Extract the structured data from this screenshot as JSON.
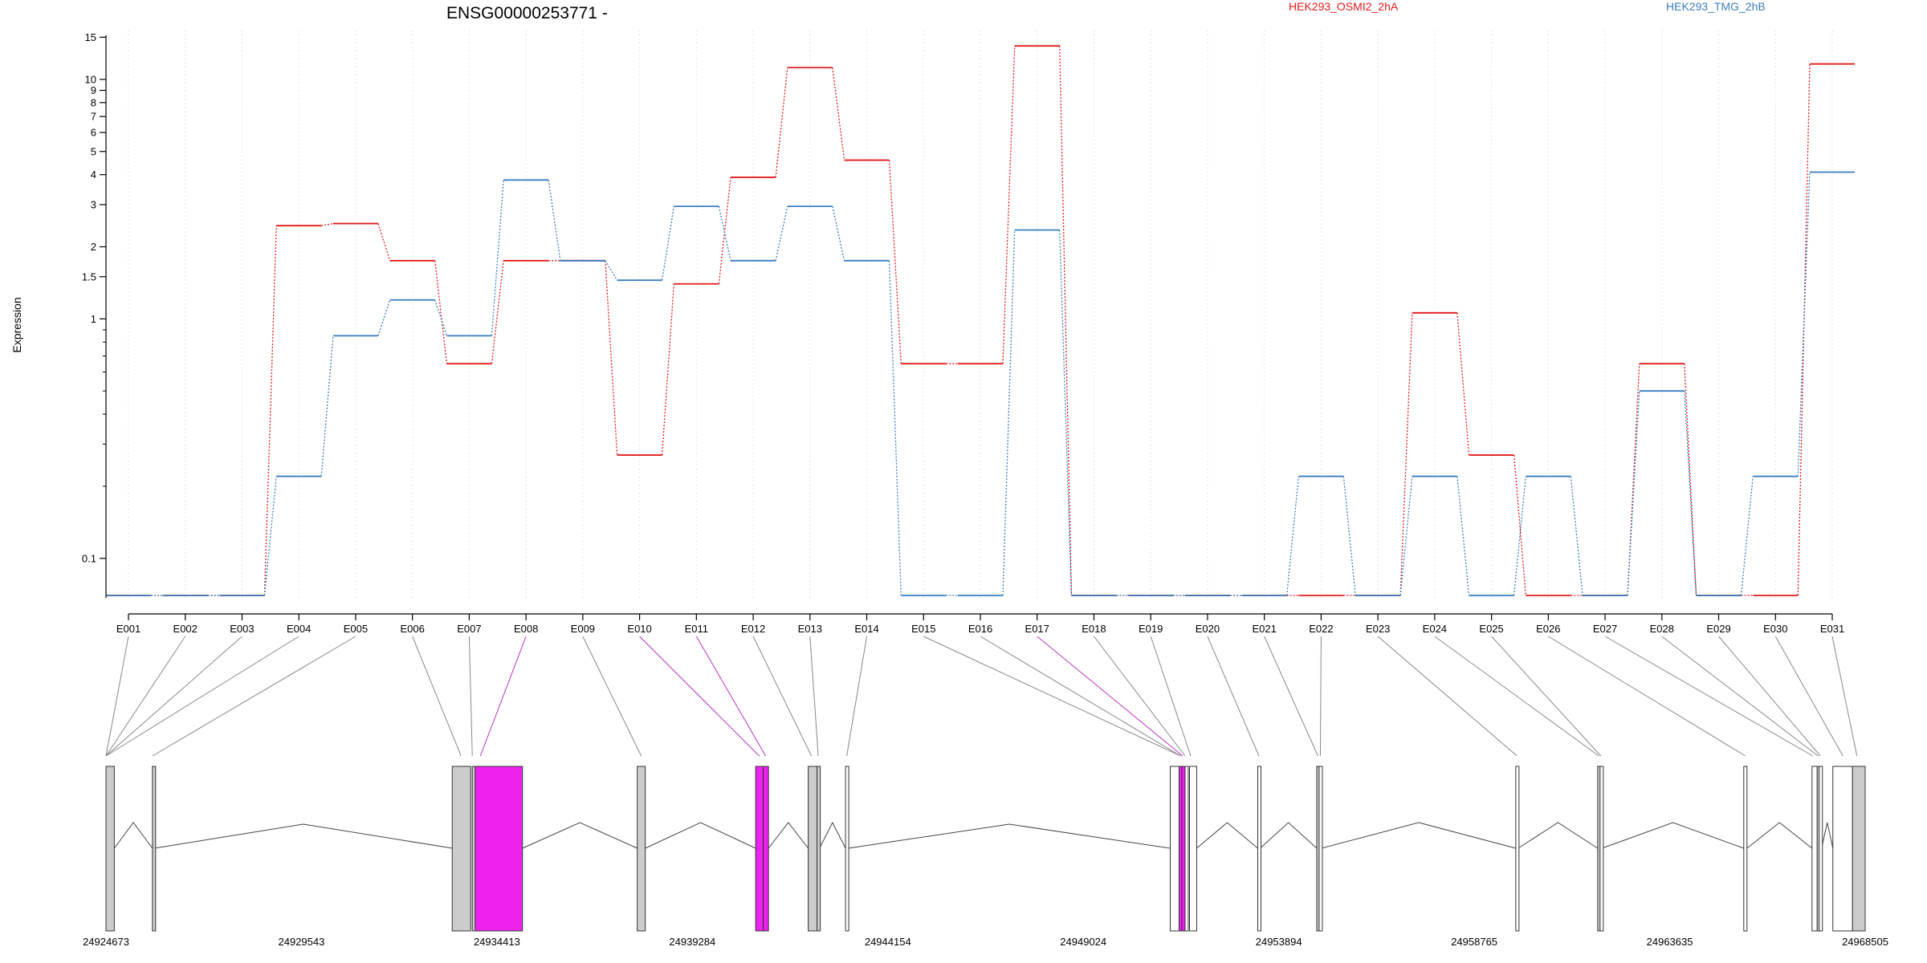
{
  "chart_data": {
    "type": "line",
    "title": "ENSG00000253771 -",
    "ylabel": "Expression",
    "y_scale": "log",
    "ylim": [
      0.07,
      16
    ],
    "y_ticks": [
      0.1,
      1,
      1.5,
      2,
      3,
      4,
      5,
      6,
      7,
      8,
      9,
      10,
      15
    ],
    "y_tick_labels": [
      "0.1",
      "1",
      "1.5",
      "2",
      "3",
      "4",
      "5",
      "6",
      "7",
      "8",
      "9",
      "10",
      "15"
    ],
    "legend_placement": "top",
    "grid": "vertical dotted lines at exon positions",
    "categories": [
      "E001",
      "E002",
      "E003",
      "E004",
      "E005",
      "E006",
      "E007",
      "E008",
      "E009",
      "E010",
      "E011",
      "E012",
      "E013",
      "E014",
      "E015",
      "E016",
      "E017",
      "E018",
      "E019",
      "E020",
      "E021",
      "E022",
      "E023",
      "E024",
      "E025",
      "E026",
      "E027",
      "E028",
      "E029",
      "E030",
      "E031"
    ],
    "series": [
      {
        "name": "HEK293_OSMI2_2hA",
        "color": "#e31a1c",
        "values": [
          0.07,
          0.07,
          0.07,
          2.45,
          2.5,
          1.75,
          0.65,
          1.75,
          1.75,
          0.27,
          1.4,
          3.9,
          11.2,
          4.6,
          0.65,
          0.65,
          13.8,
          0.07,
          0.07,
          0.07,
          0.07,
          0.07,
          0.07,
          1.06,
          0.27,
          0.07,
          0.07,
          0.65,
          0.07,
          0.07,
          11.6
        ]
      },
      {
        "name": "HEK293_TMG_2hB",
        "color": "#3a7ec0",
        "values": [
          0.07,
          0.07,
          0.07,
          0.22,
          0.85,
          1.2,
          0.85,
          3.8,
          1.75,
          1.45,
          2.95,
          1.75,
          2.95,
          1.75,
          0.07,
          0.07,
          2.35,
          0.07,
          0.07,
          0.07,
          0.07,
          0.22,
          0.07,
          0.22,
          0.07,
          0.22,
          0.07,
          0.5,
          0.07,
          0.22,
          4.1
        ]
      }
    ],
    "gene_model": {
      "coordinate_labels": [
        "24924673",
        "24929543",
        "24934413",
        "24939284",
        "24944154",
        "24949024",
        "24953894",
        "24958765",
        "24963635",
        "24968505"
      ],
      "coord_range": [
        24924673,
        24968505
      ],
      "exons": [
        {
          "id": "E001",
          "start": 24924673,
          "end": 24924880,
          "fill": "#cccccc"
        },
        {
          "id": "E002",
          "start": 24925830,
          "end": 24925880,
          "fill": "#cccccc"
        },
        {
          "id": "E006",
          "start": 24933300,
          "end": 24933760,
          "fill": "#cccccc"
        },
        {
          "id": "E007",
          "start": 24933800,
          "end": 24933860,
          "fill": "#cccccc"
        },
        {
          "id": "E008",
          "start": 24933870,
          "end": 24935050,
          "fill": "#ee22ee"
        },
        {
          "id": "E009",
          "start": 24937910,
          "end": 24938110,
          "fill": "#cccccc"
        },
        {
          "id": "E010",
          "start": 24940860,
          "end": 24941050,
          "fill": "#ee22ee"
        },
        {
          "id": "E011",
          "start": 24941050,
          "end": 24941180,
          "fill": "#ee22ee"
        },
        {
          "id": "E012",
          "start": 24942170,
          "end": 24942390,
          "fill": "#cccccc"
        },
        {
          "id": "E013",
          "start": 24942390,
          "end": 24942450,
          "fill": "#cccccc"
        },
        {
          "id": "E014",
          "start": 24943100,
          "end": 24943170,
          "fill": "#ffffff"
        },
        {
          "id": "E015",
          "start": 24951190,
          "end": 24951410,
          "fill": "#ffffff"
        },
        {
          "id": "E016",
          "start": 24951410,
          "end": 24951480,
          "fill": "#ee22ee"
        },
        {
          "id": "E017",
          "start": 24951480,
          "end": 24951560,
          "fill": "#ee22ee"
        },
        {
          "id": "E018",
          "start": 24951560,
          "end": 24951610,
          "fill": "#ffffff"
        },
        {
          "id": "E019",
          "start": 24951670,
          "end": 24951850,
          "fill": "#ffffff"
        },
        {
          "id": "E020",
          "start": 24953370,
          "end": 24953430,
          "fill": "#ffffff"
        },
        {
          "id": "E021",
          "start": 24954840,
          "end": 24954900,
          "fill": "#cccccc"
        },
        {
          "id": "E022",
          "start": 24954900,
          "end": 24954960,
          "fill": "#ffffff"
        },
        {
          "id": "E023",
          "start": 24959800,
          "end": 24959860,
          "fill": "#ffffff"
        },
        {
          "id": "E024",
          "start": 24961840,
          "end": 24961900,
          "fill": "#cccccc"
        },
        {
          "id": "E025",
          "start": 24961900,
          "end": 24961950,
          "fill": "#ffffff"
        },
        {
          "id": "E026",
          "start": 24965480,
          "end": 24965560,
          "fill": "#ffffff"
        },
        {
          "id": "E027",
          "start": 24967180,
          "end": 24967310,
          "fill": "#ffffff"
        },
        {
          "id": "E028",
          "start": 24967310,
          "end": 24967360,
          "fill": "#cccccc"
        },
        {
          "id": "E029",
          "start": 24967360,
          "end": 24967420,
          "fill": "#ffffff"
        },
        {
          "id": "E030",
          "start": 24967700,
          "end": 24968190,
          "fill": "#ffffff"
        },
        {
          "id": "E031",
          "start": 24968190,
          "end": 24968505,
          "fill": "#cccccc"
        }
      ],
      "connectors": [
        {
          "label": "E001",
          "exon_x": 24924673,
          "color": "#888888"
        },
        {
          "label": "E002",
          "exon_x": 24924673,
          "color": "#888888"
        },
        {
          "label": "E003",
          "exon_x": 24924673,
          "color": "#888888"
        },
        {
          "label": "E004",
          "exon_x": 24924673,
          "color": "#888888"
        },
        {
          "label": "E005",
          "exon_x": 24925830,
          "color": "#888888"
        },
        {
          "label": "E006",
          "exon_x": 24933520,
          "color": "#888888"
        },
        {
          "label": "E007",
          "exon_x": 24933800,
          "color": "#888888"
        },
        {
          "label": "E008",
          "exon_x": 24934000,
          "color": "#bb33bb"
        },
        {
          "label": "E009",
          "exon_x": 24938010,
          "color": "#888888"
        },
        {
          "label": "E010",
          "exon_x": 24940950,
          "color": "#bb33bb"
        },
        {
          "label": "E011",
          "exon_x": 24941110,
          "color": "#bb33bb"
        },
        {
          "label": "E012",
          "exon_x": 24942250,
          "color": "#888888"
        },
        {
          "label": "E013",
          "exon_x": 24942420,
          "color": "#888888"
        },
        {
          "label": "E014",
          "exon_x": 24943130,
          "color": "#888888"
        },
        {
          "label": "E015",
          "exon_x": 24951450,
          "color": "#888888"
        },
        {
          "label": "E016",
          "exon_x": 24951450,
          "color": "#888888"
        },
        {
          "label": "E017",
          "exon_x": 24951500,
          "color": "#bb33bb"
        },
        {
          "label": "E018",
          "exon_x": 24951560,
          "color": "#888888"
        },
        {
          "label": "E019",
          "exon_x": 24951700,
          "color": "#888888"
        },
        {
          "label": "E020",
          "exon_x": 24953400,
          "color": "#888888"
        },
        {
          "label": "E021",
          "exon_x": 24954870,
          "color": "#888888"
        },
        {
          "label": "E022",
          "exon_x": 24954930,
          "color": "#888888"
        },
        {
          "label": "E023",
          "exon_x": 24959830,
          "color": "#888888"
        },
        {
          "label": "E024",
          "exon_x": 24961870,
          "color": "#888888"
        },
        {
          "label": "E025",
          "exon_x": 24961920,
          "color": "#888888"
        },
        {
          "label": "E026",
          "exon_x": 24965520,
          "color": "#888888"
        },
        {
          "label": "E027",
          "exon_x": 24967200,
          "color": "#888888"
        },
        {
          "label": "E028",
          "exon_x": 24967330,
          "color": "#888888"
        },
        {
          "label": "E029",
          "exon_x": 24967390,
          "color": "#888888"
        },
        {
          "label": "E030",
          "exon_x": 24967950,
          "color": "#888888"
        },
        {
          "label": "E031",
          "exon_x": 24968300,
          "color": "#888888"
        }
      ]
    }
  }
}
